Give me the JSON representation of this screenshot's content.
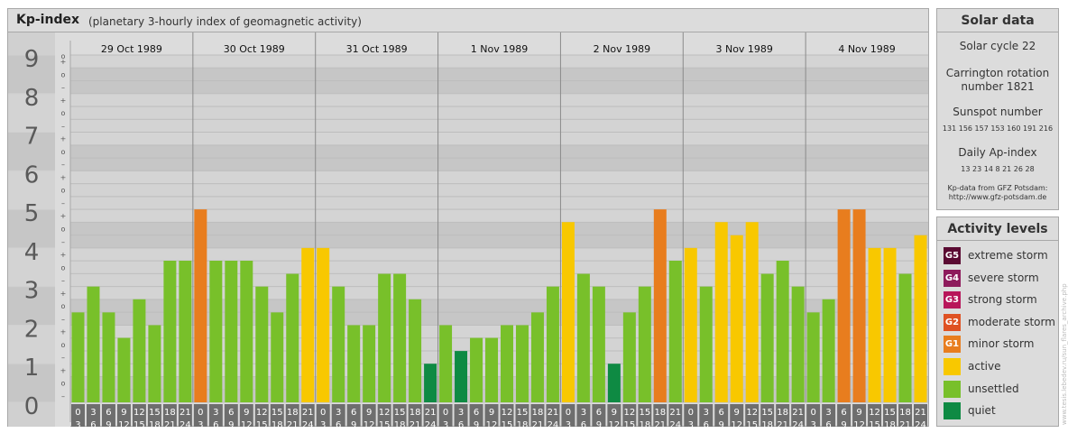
{
  "header": {
    "title": "Kp-index",
    "subtitle": "(planetary 3-hourly index of geomagnetic activity)"
  },
  "colors": {
    "quiet": "#0e8a43",
    "unsettled": "#78c02a",
    "active": "#f8c800",
    "minor": "#e87d1e",
    "moderate": "#df5122",
    "strong": "#b8165a",
    "severe": "#8e1a5c",
    "extreme": "#5a0a32"
  },
  "chart_data": {
    "type": "bar",
    "title": "Kp-index",
    "ylim": [
      0,
      9
    ],
    "y_major_labels": [
      "0",
      "1",
      "2",
      "3",
      "4",
      "5",
      "6",
      "7",
      "8",
      "9"
    ],
    "y_minor_labels": [
      "–",
      "o",
      "+"
    ],
    "days": [
      "29 Oct 1989",
      "30 Oct 1989",
      "31 Oct 1989",
      "1 Nov 1989",
      "2 Nov 1989",
      "3 Nov 1989",
      "4 Nov 1989"
    ],
    "x_tick_labels": [
      [
        "0",
        "3"
      ],
      [
        "3",
        "6"
      ],
      [
        "6",
        "9"
      ],
      [
        "9",
        "12"
      ],
      [
        "12",
        "15"
      ],
      [
        "15",
        "18"
      ],
      [
        "18",
        "21"
      ],
      [
        "21",
        "24"
      ]
    ],
    "kp_labels": [
      [
        "2+",
        "3o",
        "2+",
        "2-",
        "3-",
        "2o",
        "4-",
        "4-"
      ],
      [
        "5o",
        "4-",
        "4-",
        "4-",
        "3o",
        "2+",
        "3+",
        "4o"
      ],
      [
        "4o",
        "3o",
        "2o",
        "2o",
        "3+",
        "3+",
        "3-",
        "1o"
      ],
      [
        "2o",
        "1+",
        "2-",
        "2-",
        "2o",
        "2o",
        "2+",
        "3o"
      ],
      [
        "5-",
        "3+",
        "3o",
        "1o",
        "2+",
        "3o",
        "5o",
        "4-"
      ],
      [
        "4o",
        "3o",
        "5-",
        "4+",
        "5-",
        "3+",
        "4-",
        "3o"
      ],
      [
        "2+",
        "3-",
        "5o",
        "5o",
        "4o",
        "4o",
        "3+",
        "4+"
      ]
    ],
    "values": [
      [
        2.33,
        3.0,
        2.33,
        1.67,
        2.67,
        2.0,
        3.67,
        3.67
      ],
      [
        5.0,
        3.67,
        3.67,
        3.67,
        3.0,
        2.33,
        3.33,
        4.0
      ],
      [
        4.0,
        3.0,
        2.0,
        2.0,
        3.33,
        3.33,
        2.67,
        1.0
      ],
      [
        2.0,
        1.33,
        1.67,
        1.67,
        2.0,
        2.0,
        2.33,
        3.0
      ],
      [
        4.67,
        3.33,
        3.0,
        1.0,
        2.33,
        3.0,
        5.0,
        3.67
      ],
      [
        4.0,
        3.0,
        4.67,
        4.33,
        4.67,
        3.33,
        3.67,
        3.0
      ],
      [
        2.33,
        2.67,
        5.0,
        5.0,
        4.0,
        4.0,
        3.33,
        4.33
      ]
    ]
  },
  "solar": {
    "title": "Solar data",
    "cycle": "Solar cycle 22",
    "carrington_1": "Carrington rotation",
    "carrington_2": "number 1821",
    "sunspot_title": "Sunspot number",
    "sunspot_values": "131 156 157 153 160 191 216",
    "ap_title": "Daily Ap-index",
    "ap_values": "13 23 14 8 21 26 28",
    "source_1": "Kp-data from GFZ Potsdam:",
    "source_2": "http://www.gfz-potsdam.de"
  },
  "activity": {
    "title": "Activity levels",
    "items": [
      {
        "code": "G5",
        "label": "extreme storm",
        "color": "#5a0a32"
      },
      {
        "code": "G4",
        "label": "severe storm",
        "color": "#8e1a5c"
      },
      {
        "code": "G3",
        "label": "strong storm",
        "color": "#b8165a"
      },
      {
        "code": "G2",
        "label": "moderate storm",
        "color": "#df5122"
      },
      {
        "code": "G1",
        "label": "minor storm",
        "color": "#e87d1e"
      },
      {
        "code": "",
        "label": "active",
        "color": "#f8c800"
      },
      {
        "code": "",
        "label": "unsettled",
        "color": "#78c02a"
      },
      {
        "code": "",
        "label": "quiet",
        "color": "#0e8a43"
      }
    ]
  },
  "credit": "www.tesis.lebedev.ru/sun_flares_archive.php"
}
